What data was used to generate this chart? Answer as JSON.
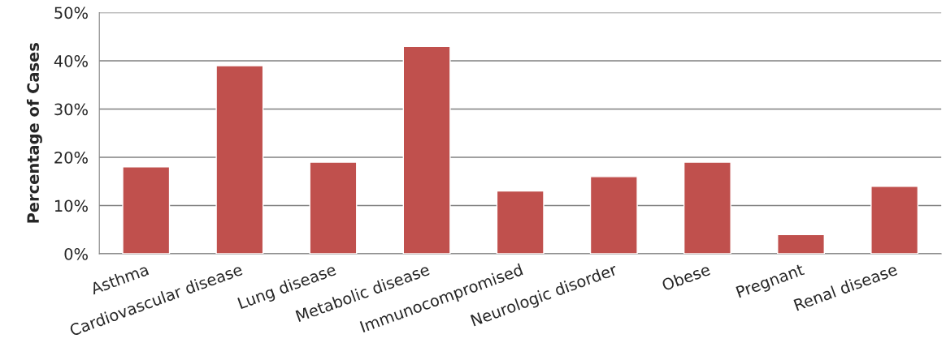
{
  "chart_data": {
    "type": "bar",
    "ylabel": "Percentage of Cases",
    "categories": [
      "Asthma",
      "Cardiovascular disease",
      "Lung disease",
      "Metabolic disease",
      "Immunocompromised",
      "Neurologic disorder",
      "Obese",
      "Pregnant",
      "Renal disease"
    ],
    "values": [
      18,
      39,
      19,
      43,
      13,
      16,
      19,
      4,
      14
    ],
    "color": "#c0504d",
    "ylim": [
      0,
      50
    ],
    "yticks": [
      {
        "value": 0,
        "label": "0%"
      },
      {
        "value": 10,
        "label": "10%"
      },
      {
        "value": 20,
        "label": "20%"
      },
      {
        "value": 30,
        "label": "30%"
      },
      {
        "value": 40,
        "label": "40%"
      },
      {
        "value": 50,
        "label": "50%"
      }
    ],
    "grid": "y"
  }
}
